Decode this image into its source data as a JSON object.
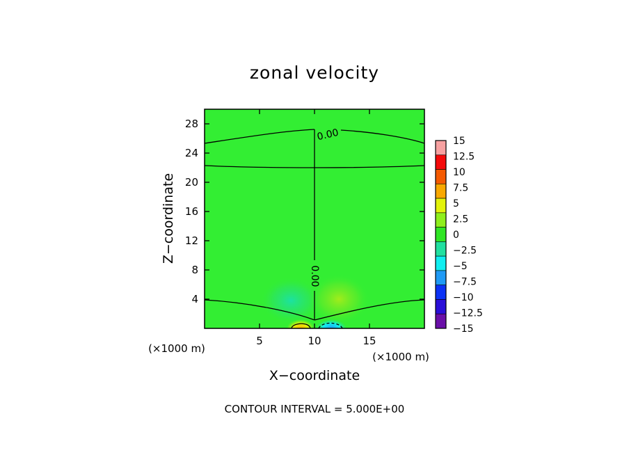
{
  "chart_data": {
    "type": "heatmap",
    "title": "zonal velocity",
    "xlabel": "X−coordinate",
    "ylabel": "Z−coordinate",
    "x_unit_left": "(×1000 m)",
    "x_unit_right": "(×1000 m)",
    "xlim": [
      0,
      20
    ],
    "ylim": [
      0,
      30
    ],
    "x_ticks": [
      5,
      10,
      15
    ],
    "y_ticks": [
      4,
      8,
      12,
      16,
      20,
      24,
      28
    ],
    "contour_labels": [
      {
        "text": "0.00",
        "x": 11.1,
        "z": 26.5
      },
      {
        "text": "0.00",
        "x": 10.0,
        "z": 7.3
      }
    ],
    "contour_interval_text": "CONTOUR INTERVAL = 5.000E+00",
    "colorbar": {
      "labels": [
        "15",
        "12.5",
        "10",
        "7.5",
        "5",
        "2.5",
        "0",
        "−2.5",
        "−5",
        "−7.5",
        "−10",
        "−12.5",
        "−15"
      ],
      "levels": [
        15,
        12.5,
        10,
        7.5,
        5,
        2.5,
        0,
        -2.5,
        -5,
        -7.5,
        -10,
        -12.5,
        -15
      ],
      "colors_top_to_bottom": [
        "#f7a1a1",
        "#f40a0a",
        "#f55a00",
        "#f9a800",
        "#e3f30a",
        "#8fef1c",
        "#2fe624",
        "#21e0a0",
        "#10eef0",
        "#1f9af5",
        "#0c32f5",
        "#2a0fd8",
        "#6a0fa8"
      ]
    },
    "field_background_color": "#33ee33",
    "description": "Zonal velocity field, near zero everywhere; weak negative anomaly below 5 km left of x=10 and positive anomaly right of x=10; strong dipole at the surface near x=9-12."
  }
}
